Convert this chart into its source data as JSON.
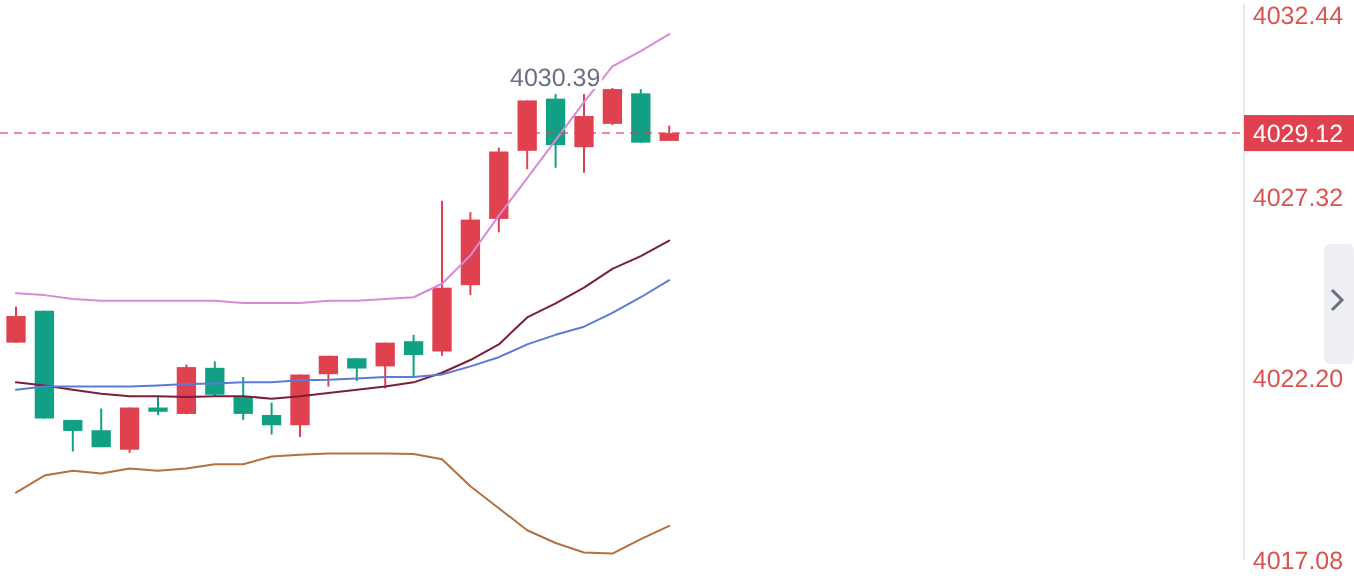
{
  "chart_data": {
    "type": "candlestick",
    "categories": [
      null,
      null,
      null,
      null,
      null,
      null,
      null,
      null,
      null,
      null,
      null,
      null,
      null,
      null,
      null,
      null,
      null,
      null,
      null,
      null,
      null,
      null,
      null,
      null
    ],
    "ylim": [
      4017.08,
      4032.76
    ],
    "yticks": [
      4032.44,
      4027.32,
      {
        "value": 4022.2,
        "label": "4022.20"
      },
      4017.08
    ],
    "tick_labels": "y",
    "grid": false,
    "marker": "none",
    "line_style": "solid",
    "ohlc": [
      [
        4023.21,
        4024.23,
        4023.21,
        4023.96
      ],
      [
        4024.11,
        4024.11,
        4021.07,
        4021.07
      ],
      [
        4021.03,
        4021.03,
        4020.14,
        4020.72
      ],
      [
        4020.74,
        4021.35,
        4020.26,
        4020.26
      ],
      [
        4020.19,
        4021.38,
        4020.1,
        4021.38
      ],
      [
        4021.38,
        4021.7,
        4021.17,
        4021.26
      ],
      [
        4021.2,
        4022.59,
        4021.19,
        4022.52
      ],
      [
        4022.5,
        4022.68,
        4021.7,
        4021.74
      ],
      [
        4021.7,
        4022.24,
        4021.03,
        4021.2
      ],
      [
        4021.17,
        4021.52,
        4020.62,
        4020.88
      ],
      [
        4020.88,
        4022.31,
        4020.55,
        4022.31
      ],
      [
        4022.32,
        4022.84,
        4021.97,
        4022.84
      ],
      [
        4022.77,
        4022.77,
        4022.13,
        4022.48
      ],
      [
        4022.54,
        4023.21,
        4021.92,
        4023.21
      ],
      [
        4023.25,
        4023.43,
        4022.27,
        4022.86
      ],
      [
        4022.96,
        4027.21,
        4022.84,
        4024.76
      ],
      [
        4024.83,
        4026.89,
        4024.55,
        4026.68
      ],
      [
        4026.7,
        4028.71,
        4026.32,
        4028.6
      ],
      [
        4028.62,
        4030.04,
        4028.1,
        4030.04
      ],
      [
        4030.09,
        4030.22,
        4028.14,
        4028.78
      ],
      [
        4028.72,
        4030.22,
        4028.0,
        4029.6
      ],
      [
        4029.38,
        4030.39,
        4029.35,
        4030.36
      ],
      [
        4030.24,
        4030.36,
        4028.85,
        4028.85
      ],
      [
        4028.9,
        4029.33,
        4028.9,
        4029.12
      ]
    ],
    "colors": [
      "#e0414f",
      "#12a085",
      "#12a085",
      "#12a085",
      "#e0414f",
      "#12a085",
      "#e0414f",
      "#12a085",
      "#12a085",
      "#12a085",
      "#e0414f",
      "#e0414f",
      "#12a085",
      "#e0414f",
      "#12a085",
      "#e0414f",
      "#e0414f",
      "#e0414f",
      "#e0414f",
      "#12a085",
      "#e0414f",
      "#e0414f",
      "#12a085",
      "#e0414f"
    ],
    "series": [
      {
        "type": "line",
        "color": "#d68ad6",
        "values": [
          4024.6,
          4024.55,
          4024.44,
          4024.39,
          4024.39,
          4024.39,
          4024.39,
          4024.39,
          4024.33,
          4024.33,
          4024.33,
          4024.39,
          4024.39,
          4024.44,
          4024.49,
          4024.87,
          4025.67,
          4026.79,
          4027.85,
          4028.92,
          4029.99,
          4031.0,
          4031.43,
          4031.91
        ]
      },
      {
        "type": "line",
        "color": "#7a1f3a",
        "values": [
          4022.09,
          4022.0,
          4021.88,
          4021.77,
          4021.7,
          4021.7,
          4021.68,
          4021.7,
          4021.7,
          4021.63,
          4021.7,
          4021.79,
          4021.88,
          4021.97,
          4022.09,
          4022.36,
          4022.72,
          4023.16,
          4023.92,
          4024.32,
          4024.76,
          4025.29,
          4025.65,
          4026.09
        ]
      },
      {
        "type": "line",
        "color": "#5b7bd5",
        "values": [
          4021.88,
          4021.97,
          4021.97,
          4021.97,
          4021.97,
          4022.0,
          4022.04,
          4022.06,
          4022.09,
          4022.09,
          4022.15,
          4022.16,
          4022.2,
          4022.24,
          4022.24,
          4022.31,
          4022.54,
          4022.8,
          4023.16,
          4023.43,
          4023.66,
          4024.05,
          4024.49,
          4024.97
        ]
      },
      {
        "type": "line",
        "color": "#b5703f",
        "values": [
          4018.98,
          4019.46,
          4019.6,
          4019.52,
          4019.66,
          4019.6,
          4019.66,
          4019.78,
          4019.78,
          4020.0,
          4020.05,
          4020.08,
          4020.08,
          4020.08,
          4020.07,
          4019.92,
          4019.16,
          4018.54,
          4017.92,
          4017.56,
          4017.29,
          4017.26,
          4017.67,
          4018.04
        ]
      }
    ],
    "ref_lines": [
      {
        "axis": "y",
        "value": 4029.12,
        "label": "4029.12",
        "color": "#e0414f",
        "line_style": "dashed"
      }
    ],
    "annotations": [
      {
        "text": "4030.39",
        "y": 4030.39
      }
    ]
  }
}
